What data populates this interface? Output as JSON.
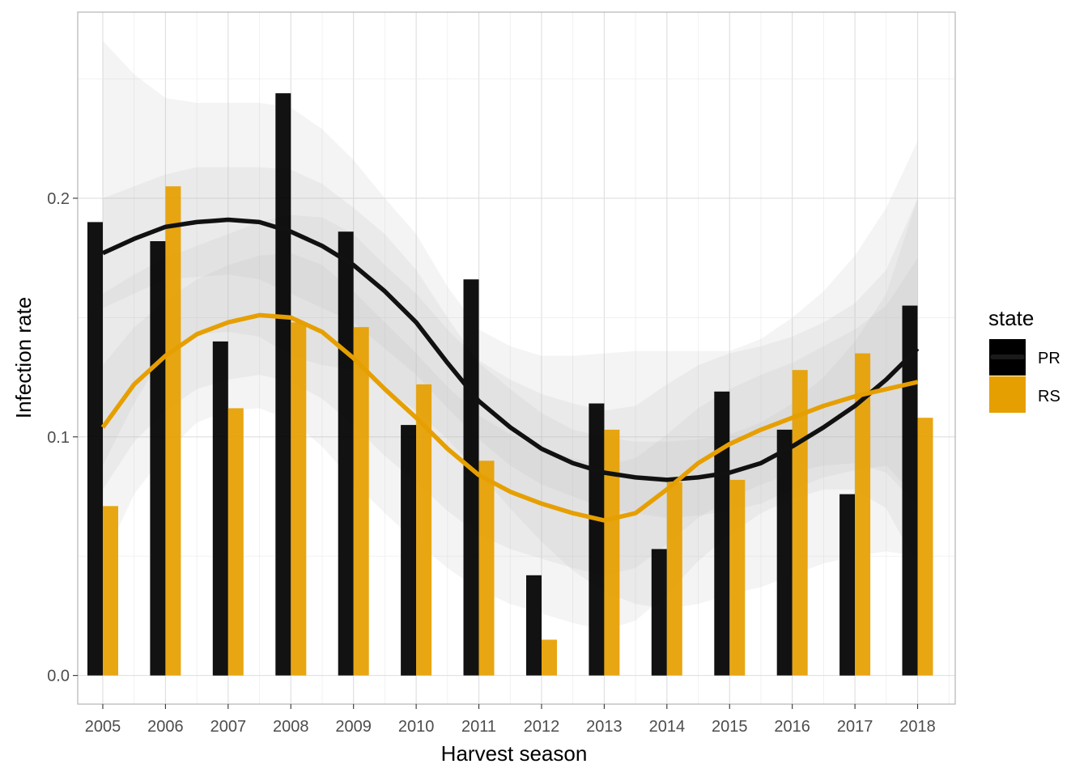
{
  "chart_data": {
    "type": "bar",
    "title": "",
    "xlabel": "Harvest season",
    "ylabel": "Infection rate",
    "categories": [
      "2005",
      "2006",
      "2007",
      "2008",
      "2009",
      "2010",
      "2011",
      "2012",
      "2013",
      "2014",
      "2015",
      "2016",
      "2017",
      "2018"
    ],
    "series": [
      {
        "name": "PR",
        "color": "#000000",
        "values": [
          0.19,
          0.182,
          0.14,
          0.244,
          0.186,
          0.105,
          0.166,
          0.042,
          0.114,
          0.053,
          0.119,
          0.103,
          0.076,
          0.155
        ]
      },
      {
        "name": "RS",
        "color": "#E69F00",
        "values": [
          0.071,
          0.205,
          0.112,
          0.148,
          0.146,
          0.122,
          0.09,
          0.015,
          0.103,
          0.081,
          0.082,
          0.128,
          0.135,
          0.108
        ]
      }
    ],
    "smooth": [
      {
        "series": "PR",
        "x": [
          2005,
          2005.5,
          2006,
          2006.5,
          2007,
          2007.5,
          2008,
          2008.5,
          2009,
          2009.5,
          2010,
          2010.5,
          2011,
          2011.5,
          2012,
          2012.5,
          2013,
          2013.5,
          2014,
          2014.5,
          2015,
          2015.5,
          2016,
          2016.5,
          2017,
          2017.5,
          2018
        ],
        "y": [
          0.177,
          0.183,
          0.188,
          0.19,
          0.191,
          0.19,
          0.186,
          0.18,
          0.172,
          0.161,
          0.148,
          0.131,
          0.115,
          0.104,
          0.095,
          0.089,
          0.085,
          0.083,
          0.082,
          0.083,
          0.085,
          0.089,
          0.096,
          0.104,
          0.113,
          0.124,
          0.137
        ],
        "band_inner": {
          "upper": [
            0.2,
            0.205,
            0.21,
            0.213,
            0.213,
            0.213,
            0.212,
            0.206,
            0.196,
            0.185,
            0.17,
            0.15,
            0.131,
            0.12,
            0.11,
            0.103,
            0.1,
            0.098,
            0.098,
            0.099,
            0.101,
            0.106,
            0.114,
            0.125,
            0.14,
            0.16,
            0.2
          ],
          "lower": [
            0.154,
            0.16,
            0.166,
            0.167,
            0.168,
            0.166,
            0.16,
            0.154,
            0.148,
            0.137,
            0.126,
            0.112,
            0.099,
            0.088,
            0.08,
            0.075,
            0.07,
            0.068,
            0.066,
            0.067,
            0.069,
            0.072,
            0.078,
            0.083,
            0.086,
            0.088,
            0.074
          ]
        },
        "band_outer": {
          "upper": [
            0.266,
            0.252,
            0.242,
            0.24,
            0.24,
            0.24,
            0.238,
            0.229,
            0.216,
            0.2,
            0.185,
            0.163,
            0.145,
            0.138,
            0.134,
            0.134,
            0.135,
            0.136,
            0.136,
            0.136,
            0.136,
            0.141,
            0.15,
            0.161,
            0.176,
            0.196,
            0.224
          ],
          "lower": [
            0.088,
            0.114,
            0.136,
            0.143,
            0.144,
            0.142,
            0.134,
            0.13,
            0.128,
            0.12,
            0.111,
            0.099,
            0.085,
            0.07,
            0.056,
            0.044,
            0.035,
            0.03,
            0.028,
            0.03,
            0.034,
            0.037,
            0.042,
            0.047,
            0.05,
            0.052,
            0.05
          ]
        }
      },
      {
        "series": "RS",
        "x": [
          2005,
          2005.5,
          2006,
          2006.5,
          2007,
          2007.5,
          2008,
          2008.5,
          2009,
          2009.5,
          2010,
          2010.5,
          2011,
          2011.5,
          2012,
          2012.5,
          2013,
          2013.5,
          2014,
          2014.5,
          2015,
          2015.5,
          2016,
          2016.5,
          2017,
          2017.5,
          2018
        ],
        "y": [
          0.104,
          0.122,
          0.134,
          0.143,
          0.148,
          0.151,
          0.15,
          0.144,
          0.133,
          0.12,
          0.108,
          0.095,
          0.084,
          0.077,
          0.072,
          0.068,
          0.065,
          0.068,
          0.078,
          0.089,
          0.097,
          0.103,
          0.108,
          0.113,
          0.117,
          0.12,
          0.123
        ],
        "band_inner": {
          "upper": [
            0.13,
            0.146,
            0.157,
            0.166,
            0.172,
            0.176,
            0.177,
            0.172,
            0.161,
            0.148,
            0.135,
            0.121,
            0.109,
            0.101,
            0.095,
            0.091,
            0.088,
            0.091,
            0.101,
            0.112,
            0.12,
            0.126,
            0.131,
            0.138,
            0.145,
            0.155,
            0.175
          ],
          "lower": [
            0.078,
            0.098,
            0.111,
            0.12,
            0.124,
            0.126,
            0.123,
            0.116,
            0.105,
            0.092,
            0.081,
            0.069,
            0.059,
            0.053,
            0.049,
            0.045,
            0.042,
            0.045,
            0.055,
            0.066,
            0.074,
            0.08,
            0.085,
            0.088,
            0.089,
            0.085,
            0.071
          ]
        },
        "band_outer": {
          "upper": [
            0.16,
            0.168,
            0.175,
            0.18,
            0.185,
            0.19,
            0.193,
            0.192,
            0.185,
            0.172,
            0.16,
            0.145,
            0.132,
            0.124,
            0.118,
            0.114,
            0.111,
            0.113,
            0.122,
            0.13,
            0.135,
            0.138,
            0.142,
            0.148,
            0.156,
            0.17,
            0.2
          ],
          "lower": [
            0.048,
            0.076,
            0.093,
            0.106,
            0.111,
            0.112,
            0.107,
            0.096,
            0.081,
            0.068,
            0.056,
            0.045,
            0.036,
            0.03,
            0.026,
            0.022,
            0.019,
            0.023,
            0.034,
            0.048,
            0.059,
            0.068,
            0.074,
            0.078,
            0.078,
            0.07,
            0.046
          ]
        }
      }
    ],
    "xlim": [
      2004.6,
      2018.6
    ],
    "ylim": [
      -0.012,
      0.278
    ],
    "yticks": [
      0.0,
      0.1,
      0.2
    ],
    "ytick_labels": [
      "0.0",
      "0.1",
      "0.2"
    ],
    "grid": true,
    "legend": {
      "title": "state",
      "position": "right",
      "labels": [
        "PR",
        "RS"
      ]
    }
  }
}
